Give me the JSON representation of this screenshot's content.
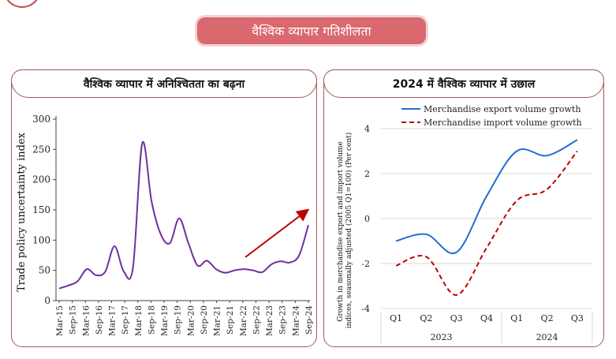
{
  "banner": {
    "title": "वैश्विक व्यापार गतिशीलता"
  },
  "colors": {
    "banner": "#d9686f",
    "border": "#a35a5c",
    "purple": "#7030a0",
    "arrow": "#c00000",
    "export": "#1f6fd0",
    "import": "#c00000"
  },
  "chart_data": [
    {
      "type": "line",
      "title": "वैश्विक व्यापार में अनिश्चितता का बढ़ना",
      "ylabel": "Trade policy uncertainty index",
      "xlabel": "",
      "ylim": [
        0,
        300
      ],
      "yticks": [
        0,
        50,
        100,
        150,
        200,
        250,
        300
      ],
      "grid": false,
      "x_tick_labels": [
        "Mar-15",
        "Sep-15",
        "Mar-16",
        "Sep-16",
        "Mar-17",
        "Sep-17",
        "Mar-18",
        "Sep-18",
        "Mar-19",
        "Sep-19",
        "Mar-20",
        "Sep-20",
        "Mar-21",
        "Sep-21",
        "Mar-22",
        "Sep-22",
        "Mar-23",
        "Sep-23",
        "Mar-24",
        "Sep-24"
      ],
      "series": [
        {
          "values": [
            20,
            25,
            32,
            52,
            42,
            48,
            90,
            48,
            55,
            260,
            165,
            110,
            95,
            136,
            95,
            58,
            66,
            52,
            46,
            50,
            52,
            50,
            47,
            60,
            65,
            63,
            75,
            125
          ]
        }
      ],
      "annotation": "upward arrow (rising trend)"
    },
    {
      "type": "line",
      "title": "2024 में वैश्विक व्यापार में उछाल",
      "ylabel": "Growth in merchandise export and import volume indices, seasonally adjusted (2005 Q1=100) (Per cent)",
      "xlabel": "",
      "ylim": [
        -4,
        4
      ],
      "yticks": [
        -4,
        -2,
        0,
        2,
        4
      ],
      "grid": true,
      "legend": "top",
      "categories": [
        "Q1",
        "Q2",
        "Q3",
        "Q4",
        "Q1",
        "Q2",
        "Q3"
      ],
      "groups": [
        {
          "label": "2023",
          "span": 4
        },
        {
          "label": "2024",
          "span": 3
        }
      ],
      "series": [
        {
          "name": "Merchandise export volume growth",
          "style": "solid",
          "values": [
            -1.0,
            -0.7,
            -1.5,
            1.0,
            3.0,
            2.8,
            3.5
          ]
        },
        {
          "name": "Merchandise import volume growth",
          "style": "dashed",
          "values": [
            -2.1,
            -1.7,
            -3.4,
            -1.3,
            0.8,
            1.3,
            3.0
          ]
        }
      ]
    }
  ]
}
